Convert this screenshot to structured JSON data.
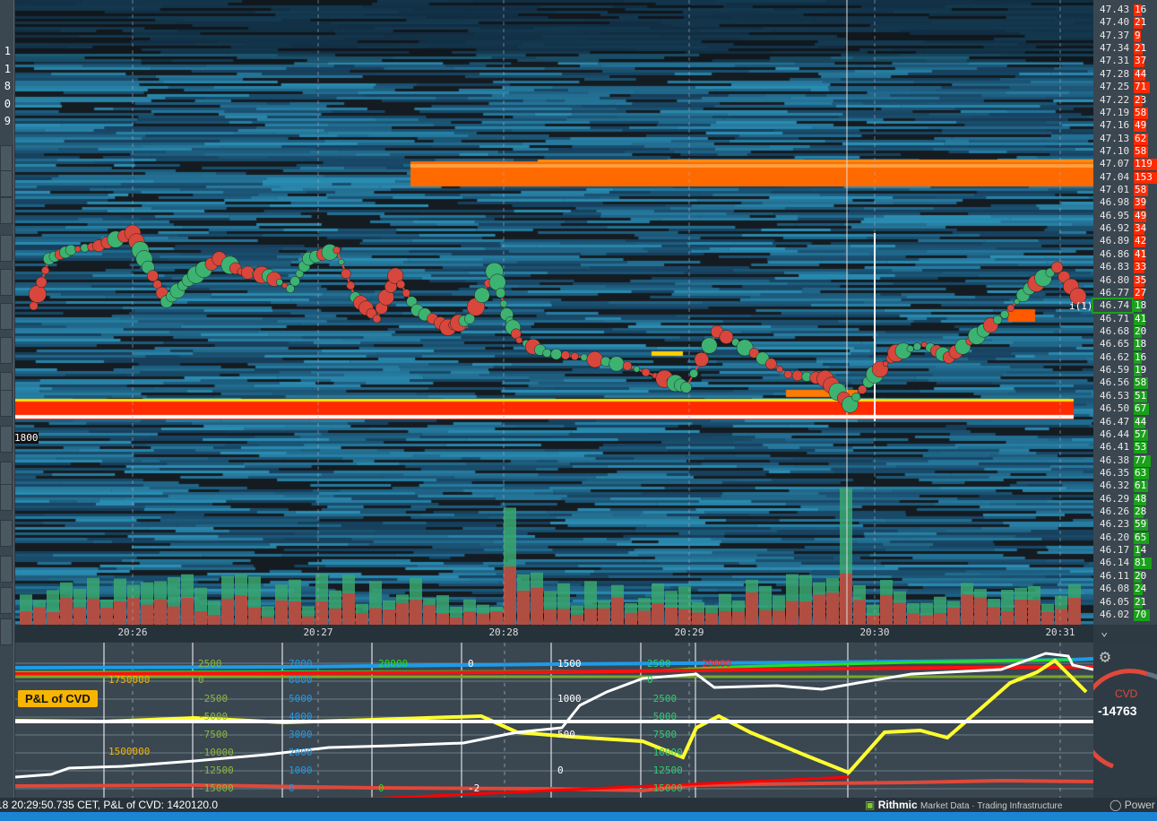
{
  "sidebar": {
    "values": [
      "1",
      "1",
      "8",
      "0",
      "9"
    ]
  },
  "heatmap": {
    "level_label": "1800",
    "cursor_label": "i(1)",
    "colors": {
      "bid_ask_large": "#ff3300",
      "liquidity_high": "#ff7a00",
      "liquidity_mid": "#1a8fd8",
      "buy": "#3cb371",
      "sell": "#e0483a"
    }
  },
  "time_axis": [
    "20:26",
    "20:27",
    "20:28",
    "20:29",
    "20:30",
    "20:31"
  ],
  "price_path": [
    [
      "20:25:28",
      46.74
    ],
    [
      "20:25:33",
      46.85
    ],
    [
      "20:25:40",
      46.87
    ],
    [
      "20:25:49",
      46.88
    ],
    [
      "20:26:00",
      46.91
    ],
    [
      "20:26:05",
      46.83
    ],
    [
      "20:26:11",
      46.75
    ],
    [
      "20:26:18",
      46.8
    ],
    [
      "20:26:28",
      46.85
    ],
    [
      "20:26:35",
      46.82
    ],
    [
      "20:26:44",
      46.81
    ],
    [
      "20:26:51",
      46.78
    ],
    [
      "20:26:57",
      46.85
    ],
    [
      "20:27:06",
      46.87
    ],
    [
      "20:27:12",
      46.76
    ],
    [
      "20:27:19",
      46.71
    ],
    [
      "20:27:25",
      46.81
    ],
    [
      "20:27:32",
      46.73
    ],
    [
      "20:27:42",
      46.69
    ],
    [
      "20:27:49",
      46.71
    ],
    [
      "20:27:57",
      46.82
    ],
    [
      "20:28:01",
      46.72
    ],
    [
      "20:28:05",
      46.66
    ],
    [
      "20:28:14",
      46.63
    ],
    [
      "20:28:26",
      46.62
    ],
    [
      "20:28:40",
      46.6
    ],
    [
      "20:28:52",
      46.57
    ],
    [
      "20:28:59",
      46.55
    ],
    [
      "20:29:09",
      46.68
    ],
    [
      "20:29:21",
      46.63
    ],
    [
      "20:29:32",
      46.58
    ],
    [
      "20:29:44",
      46.57
    ],
    [
      "20:29:52",
      46.51
    ],
    [
      "20:30:00",
      46.58
    ],
    [
      "20:30:07",
      46.63
    ],
    [
      "20:30:16",
      46.65
    ],
    [
      "20:30:24",
      46.62
    ],
    [
      "20:30:33",
      46.67
    ],
    [
      "20:30:42",
      46.72
    ],
    [
      "20:30:50",
      46.78
    ],
    [
      "20:30:59",
      46.83
    ],
    [
      "20:31:08",
      46.74
    ]
  ],
  "ladder": {
    "current_price": "46.74",
    "rows": [
      [
        "47.43",
        "16"
      ],
      [
        "47.40",
        "21"
      ],
      [
        "47.37",
        "9"
      ],
      [
        "47.34",
        "21"
      ],
      [
        "47.31",
        "37"
      ],
      [
        "47.28",
        "44"
      ],
      [
        "47.25",
        "71"
      ],
      [
        "47.22",
        "23"
      ],
      [
        "47.19",
        "58"
      ],
      [
        "47.16",
        "49"
      ],
      [
        "47.13",
        "62"
      ],
      [
        "47.10",
        "58"
      ],
      [
        "47.07",
        "119"
      ],
      [
        "47.04",
        "153"
      ],
      [
        "47.01",
        "58"
      ],
      [
        "46.98",
        "39"
      ],
      [
        "46.95",
        "49"
      ],
      [
        "46.92",
        "34"
      ],
      [
        "46.89",
        "42"
      ],
      [
        "46.86",
        "41"
      ],
      [
        "46.83",
        "33"
      ],
      [
        "46.80",
        "35"
      ],
      [
        "46.77",
        "27"
      ],
      [
        "46.74",
        "18"
      ],
      [
        "46.71",
        "41"
      ],
      [
        "46.68",
        "20"
      ],
      [
        "46.65",
        "18"
      ],
      [
        "46.62",
        "16"
      ],
      [
        "46.59",
        "19"
      ],
      [
        "46.56",
        "58"
      ],
      [
        "46.53",
        "51"
      ],
      [
        "46.50",
        "67"
      ],
      [
        "46.47",
        "44"
      ],
      [
        "46.44",
        "57"
      ],
      [
        "46.41",
        "53"
      ],
      [
        "46.38",
        "77"
      ],
      [
        "46.35",
        "63"
      ],
      [
        "46.32",
        "61"
      ],
      [
        "46.29",
        "48"
      ],
      [
        "46.26",
        "28"
      ],
      [
        "46.23",
        "59"
      ],
      [
        "46.20",
        "65"
      ],
      [
        "46.17",
        "14"
      ],
      [
        "46.14",
        "81"
      ],
      [
        "46.11",
        "20"
      ],
      [
        "46.08",
        "24"
      ],
      [
        "46.05",
        "21"
      ],
      [
        "46.02",
        "70"
      ]
    ]
  },
  "indicator": {
    "title": "P&L of CVD",
    "axis_orange": [
      "1750000",
      "1500000"
    ],
    "axis_green": [
      "2500",
      "0",
      "-2500",
      "-5000",
      "-7500",
      "-10000",
      "-12500",
      "-15000"
    ],
    "axis_blue": [
      "7000",
      "6000",
      "5000",
      "4000",
      "3000",
      "2000",
      "1000",
      "0"
    ],
    "axis_green2": [
      "20000",
      "0"
    ],
    "axis_white": [
      "0",
      "-2"
    ],
    "axis_white2": [
      "1500",
      "1000",
      "500",
      "0"
    ],
    "axis_green3": [
      "2500",
      "0",
      "-2500",
      "-5000",
      "-7500",
      "-10000",
      "-12500",
      "-15000"
    ],
    "axis_red": [
      "20000"
    ]
  },
  "gauge": {
    "label": "CVD",
    "value": "-14763"
  },
  "status": {
    "text": "18 20:29:50.735 CET, P&L of CVD: 1420120.0",
    "brand": "Rithmic",
    "brand_tagline": "Market Data · Trading Infrastructure",
    "powered": "Power"
  }
}
